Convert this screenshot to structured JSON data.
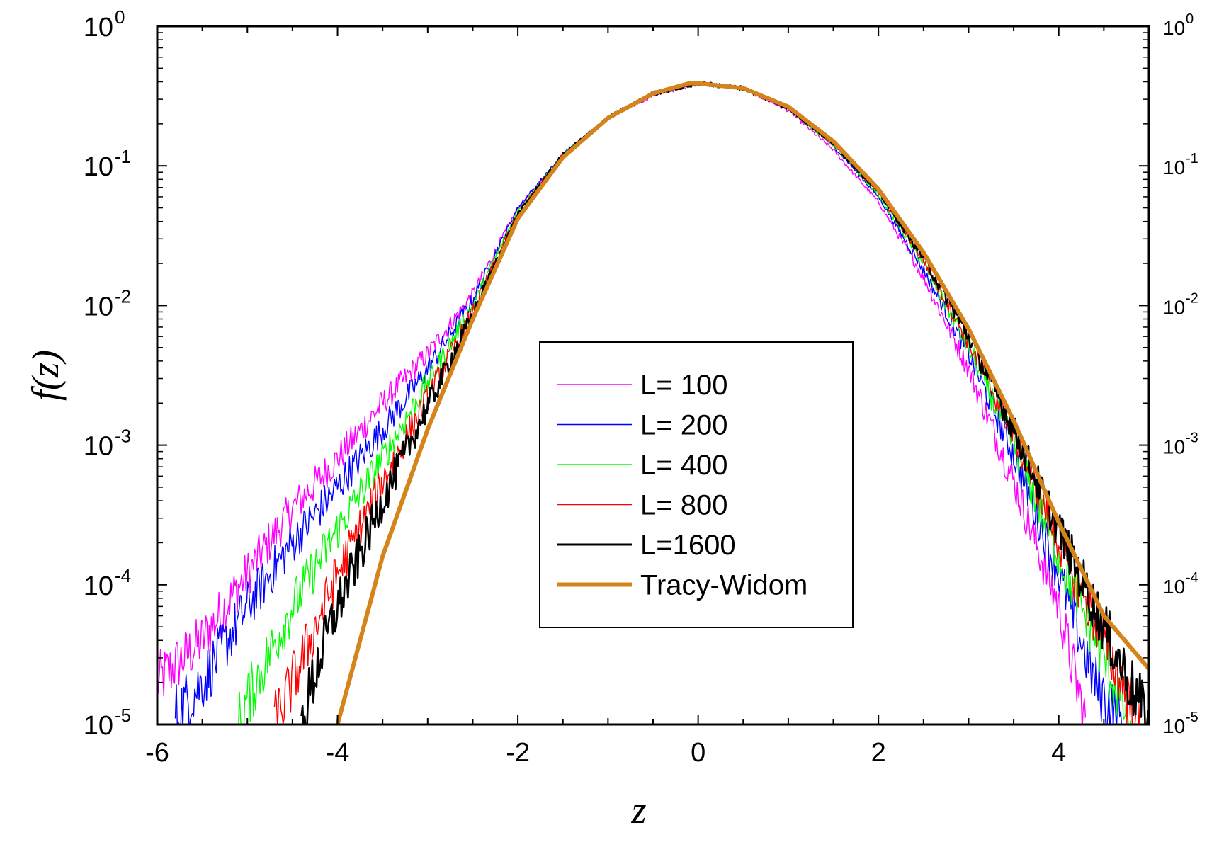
{
  "chart_data": {
    "type": "line",
    "title": "",
    "xlabel": "z",
    "ylabel": "f(z)",
    "y_scale": "log",
    "xlim": [
      -6,
      5
    ],
    "ylim": [
      1e-05,
      1
    ],
    "x_ticks": [
      {
        "value": -6,
        "label": "-6"
      },
      {
        "value": -4,
        "label": "-4"
      },
      {
        "value": -2,
        "label": "-2"
      },
      {
        "value": 0,
        "label": "0"
      },
      {
        "value": 2,
        "label": "2"
      },
      {
        "value": 4,
        "label": "4"
      }
    ],
    "y_ticks": [
      {
        "value": 1,
        "base": "10",
        "exp": "0"
      },
      {
        "value": 0.1,
        "base": "10",
        "exp": "-1"
      },
      {
        "value": 0.01,
        "base": "10",
        "exp": "-2"
      },
      {
        "value": 0.001,
        "base": "10",
        "exp": "-3"
      },
      {
        "value": 0.0001,
        "base": "10",
        "exp": "-4"
      },
      {
        "value": 1e-05,
        "base": "10",
        "exp": "-5"
      }
    ],
    "legend_position": "center",
    "series": [
      {
        "name": "L= 100",
        "color": "#ff00ff",
        "noisy": true,
        "points": [
          [
            -6.0,
            2e-05
          ],
          [
            -5.5,
            4e-05
          ],
          [
            -5.0,
            0.00012
          ],
          [
            -4.5,
            0.00035
          ],
          [
            -4.0,
            0.0008
          ],
          [
            -3.5,
            0.002
          ],
          [
            -3.0,
            0.0045
          ],
          [
            -2.5,
            0.012
          ],
          [
            -2.0,
            0.05
          ],
          [
            -1.5,
            0.12
          ],
          [
            -1.0,
            0.22
          ],
          [
            -0.5,
            0.32
          ],
          [
            0.0,
            0.39
          ],
          [
            0.5,
            0.36
          ],
          [
            1.0,
            0.25
          ],
          [
            1.5,
            0.13
          ],
          [
            2.0,
            0.055
          ],
          [
            2.5,
            0.016
          ],
          [
            3.0,
            0.0035
          ],
          [
            3.5,
            0.00055
          ],
          [
            4.0,
            7e-05
          ],
          [
            4.3,
            1e-05
          ]
        ]
      },
      {
        "name": "L= 200",
        "color": "#0000ff",
        "noisy": true,
        "points": [
          [
            -5.8,
            1.2e-05
          ],
          [
            -5.5,
            2e-05
          ],
          [
            -5.0,
            7e-05
          ],
          [
            -4.5,
            0.0002
          ],
          [
            -4.0,
            0.0005
          ],
          [
            -3.5,
            0.0013
          ],
          [
            -3.0,
            0.0035
          ],
          [
            -2.5,
            0.011
          ],
          [
            -2.0,
            0.05
          ],
          [
            -1.5,
            0.12
          ],
          [
            -1.0,
            0.22
          ],
          [
            -0.5,
            0.33
          ],
          [
            0.0,
            0.39
          ],
          [
            0.5,
            0.36
          ],
          [
            1.0,
            0.26
          ],
          [
            1.5,
            0.14
          ],
          [
            2.0,
            0.06
          ],
          [
            2.5,
            0.018
          ],
          [
            3.0,
            0.0045
          ],
          [
            3.5,
            0.00085
          ],
          [
            4.0,
            0.00012
          ],
          [
            4.4,
            2e-05
          ],
          [
            4.7,
            1e-05
          ]
        ]
      },
      {
        "name": "L= 400",
        "color": "#00ff00",
        "noisy": true,
        "points": [
          [
            -5.1,
            1e-05
          ],
          [
            -5.0,
            1.5e-05
          ],
          [
            -4.5,
            7e-05
          ],
          [
            -4.0,
            0.00025
          ],
          [
            -3.5,
            0.0008
          ],
          [
            -3.0,
            0.0028
          ],
          [
            -2.5,
            0.01
          ],
          [
            -2.0,
            0.048
          ],
          [
            -1.5,
            0.12
          ],
          [
            -1.0,
            0.22
          ],
          [
            -0.5,
            0.33
          ],
          [
            0.0,
            0.39
          ],
          [
            0.5,
            0.36
          ],
          [
            1.0,
            0.26
          ],
          [
            1.5,
            0.14
          ],
          [
            2.0,
            0.062
          ],
          [
            2.5,
            0.02
          ],
          [
            3.0,
            0.005
          ],
          [
            3.5,
            0.001
          ],
          [
            4.0,
            0.00016
          ],
          [
            4.5,
            3e-05
          ],
          [
            4.8,
            1e-05
          ]
        ]
      },
      {
        "name": "L= 800",
        "color": "#ff0000",
        "noisy": true,
        "points": [
          [
            -4.7,
            1e-05
          ],
          [
            -4.5,
            2e-05
          ],
          [
            -4.0,
            0.00012
          ],
          [
            -3.5,
            0.00055
          ],
          [
            -3.0,
            0.0022
          ],
          [
            -2.5,
            0.009
          ],
          [
            -2.0,
            0.046
          ],
          [
            -1.5,
            0.12
          ],
          [
            -1.0,
            0.22
          ],
          [
            -0.5,
            0.33
          ],
          [
            0.0,
            0.39
          ],
          [
            0.5,
            0.36
          ],
          [
            1.0,
            0.26
          ],
          [
            1.5,
            0.145
          ],
          [
            2.0,
            0.064
          ],
          [
            2.5,
            0.021
          ],
          [
            3.0,
            0.0055
          ],
          [
            3.5,
            0.0012
          ],
          [
            4.0,
            0.0002
          ],
          [
            4.5,
            4e-05
          ],
          [
            4.9,
            1e-05
          ]
        ]
      },
      {
        "name": "L=1600",
        "color": "#000000",
        "noisy": true,
        "points": [
          [
            -4.4,
            1e-05
          ],
          [
            -4.2,
            3e-05
          ],
          [
            -4.0,
            7e-05
          ],
          [
            -3.5,
            0.0004
          ],
          [
            -3.0,
            0.0019
          ],
          [
            -2.5,
            0.0085
          ],
          [
            -2.0,
            0.045
          ],
          [
            -1.5,
            0.12
          ],
          [
            -1.0,
            0.22
          ],
          [
            -0.5,
            0.33
          ],
          [
            0.0,
            0.39
          ],
          [
            0.5,
            0.36
          ],
          [
            1.0,
            0.26
          ],
          [
            1.5,
            0.145
          ],
          [
            2.0,
            0.065
          ],
          [
            2.5,
            0.022
          ],
          [
            3.0,
            0.006
          ],
          [
            3.5,
            0.0013
          ],
          [
            4.0,
            0.00025
          ],
          [
            4.5,
            5e-05
          ],
          [
            5.0,
            1e-05
          ]
        ]
      },
      {
        "name": "Tracy-Widom",
        "color": "#d4841a",
        "noisy": false,
        "points": [
          [
            -4.0,
            1e-05
          ],
          [
            -3.5,
            0.00016
          ],
          [
            -3.0,
            0.0013
          ],
          [
            -2.5,
            0.008
          ],
          [
            -2.0,
            0.042
          ],
          [
            -1.5,
            0.115
          ],
          [
            -1.0,
            0.22
          ],
          [
            -0.5,
            0.33
          ],
          [
            -0.1,
            0.39
          ],
          [
            0.0,
            0.39
          ],
          [
            0.5,
            0.36
          ],
          [
            1.0,
            0.265
          ],
          [
            1.5,
            0.15
          ],
          [
            2.0,
            0.068
          ],
          [
            2.5,
            0.024
          ],
          [
            3.0,
            0.0068
          ],
          [
            3.5,
            0.0015
          ],
          [
            4.0,
            0.00028
          ],
          [
            4.5,
            6e-05
          ],
          [
            5.0,
            2.5e-05
          ]
        ]
      }
    ]
  }
}
